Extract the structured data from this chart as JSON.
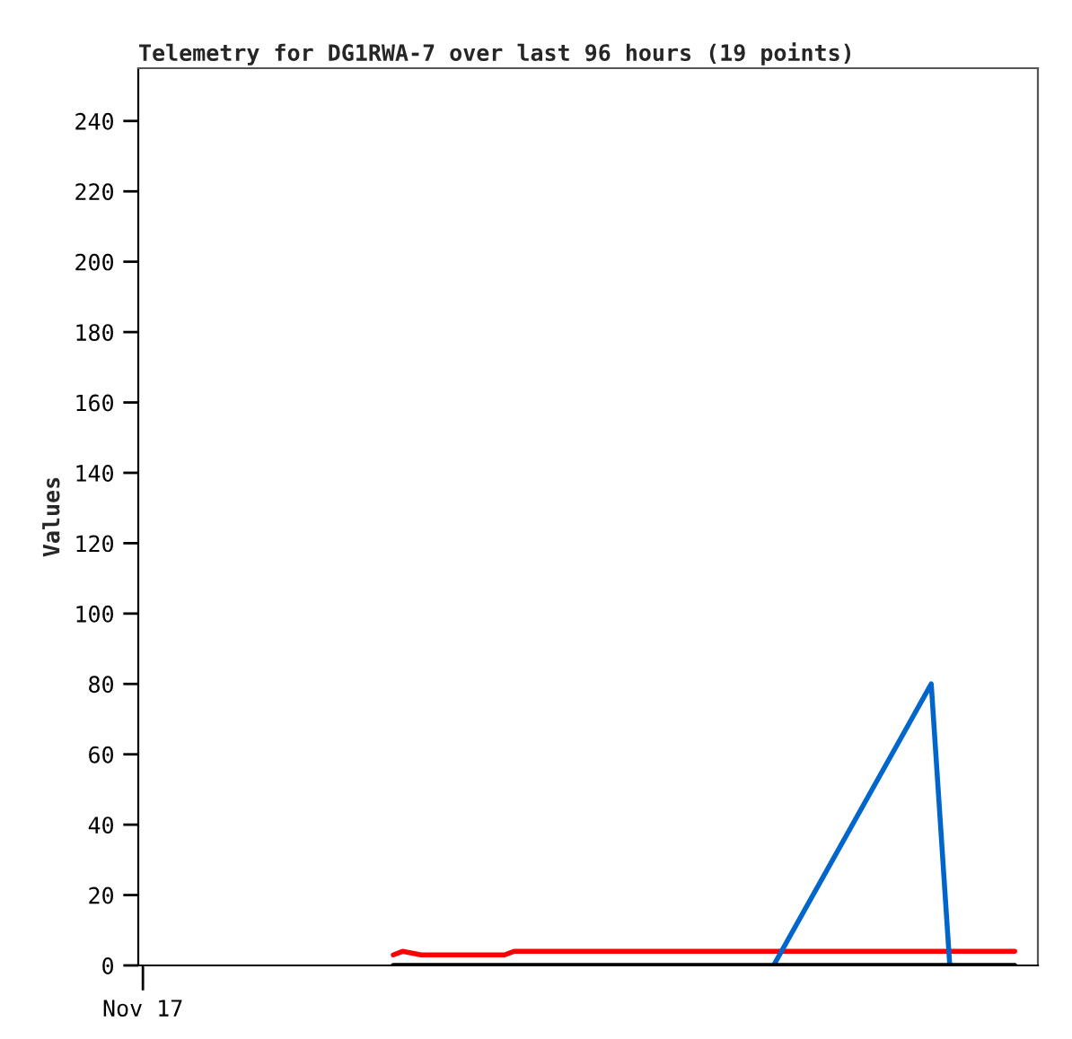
{
  "chart_data": {
    "type": "line",
    "title": "Telemetry for DG1RWA-7 over last 96 hours (19 points)",
    "ylabel": "Values",
    "categories": [
      "Nov 17",
      null,
      null,
      null,
      null,
      null,
      null,
      null,
      null,
      null,
      null,
      null,
      null,
      null,
      null,
      null,
      null,
      null,
      null,
      null,
      null,
      null,
      null,
      null,
      null,
      null,
      null,
      null,
      null,
      null,
      null,
      null,
      null,
      null,
      null,
      null,
      null,
      null,
      null,
      null,
      null,
      null,
      null,
      null,
      null,
      null,
      null,
      null,
      null,
      null,
      null,
      null,
      null,
      null,
      null,
      null,
      null,
      null,
      null,
      null,
      null,
      null,
      null,
      null,
      null,
      null,
      null,
      null,
      null,
      null,
      null,
      null,
      null,
      null,
      null,
      null,
      null,
      null,
      null,
      null,
      null,
      null,
      null,
      null,
      null,
      null,
      null,
      null,
      null,
      null,
      null,
      null,
      null,
      null,
      null,
      null,
      null
    ],
    "ylim": [
      0,
      255
    ],
    "yticks": [
      0,
      20,
      40,
      60,
      80,
      100,
      120,
      140,
      160,
      180,
      200,
      220,
      240
    ],
    "grid": false,
    "marker": "none",
    "line_style": "solid",
    "series": [
      {
        "color": "#ff0000",
        "values": [
          null,
          null,
          null,
          null,
          null,
          null,
          null,
          null,
          null,
          null,
          null,
          null,
          null,
          null,
          null,
          null,
          null,
          null,
          null,
          null,
          null,
          null,
          null,
          null,
          null,
          null,
          null,
          3,
          4,
          null,
          3,
          null,
          null,
          null,
          null,
          null,
          null,
          null,
          null,
          3,
          4,
          null,
          null,
          null,
          null,
          null,
          null,
          null,
          null,
          null,
          null,
          null,
          null,
          null,
          null,
          null,
          null,
          null,
          null,
          null,
          null,
          null,
          null,
          null,
          null,
          null,
          null,
          null,
          null,
          null,
          null,
          null,
          null,
          null,
          null,
          null,
          null,
          null,
          null,
          null,
          null,
          null,
          null,
          null,
          null,
          null,
          null,
          null,
          null,
          null,
          null,
          null,
          null,
          null,
          4,
          null,
          null
        ]
      },
      {
        "color": "#0066cc",
        "values": [
          null,
          null,
          null,
          null,
          null,
          null,
          null,
          null,
          null,
          null,
          null,
          null,
          null,
          null,
          null,
          null,
          null,
          null,
          null,
          null,
          null,
          null,
          null,
          null,
          null,
          null,
          null,
          null,
          null,
          null,
          null,
          null,
          null,
          null,
          null,
          null,
          null,
          null,
          null,
          null,
          null,
          null,
          null,
          null,
          null,
          null,
          null,
          null,
          null,
          null,
          null,
          null,
          null,
          null,
          null,
          null,
          null,
          null,
          null,
          null,
          null,
          null,
          null,
          null,
          null,
          null,
          null,
          null,
          0,
          null,
          null,
          null,
          null,
          null,
          null,
          null,
          null,
          null,
          null,
          null,
          null,
          null,
          null,
          null,
          null,
          80,
          null,
          0,
          null,
          null,
          null,
          null,
          null,
          null,
          null,
          null,
          null
        ]
      },
      {
        "color": "#000000",
        "values": [
          null,
          null,
          null,
          null,
          null,
          null,
          null,
          null,
          null,
          null,
          null,
          null,
          null,
          null,
          null,
          null,
          null,
          null,
          null,
          null,
          null,
          null,
          null,
          null,
          null,
          null,
          null,
          0,
          null,
          null,
          null,
          null,
          null,
          null,
          null,
          null,
          null,
          null,
          null,
          null,
          null,
          null,
          null,
          null,
          null,
          null,
          null,
          null,
          null,
          null,
          null,
          null,
          null,
          null,
          null,
          null,
          null,
          null,
          null,
          null,
          null,
          null,
          null,
          null,
          null,
          null,
          null,
          null,
          null,
          null,
          null,
          null,
          null,
          null,
          null,
          null,
          null,
          null,
          null,
          null,
          null,
          null,
          null,
          null,
          null,
          null,
          null,
          null,
          null,
          null,
          null,
          null,
          null,
          null,
          0,
          null,
          null
        ]
      }
    ]
  }
}
